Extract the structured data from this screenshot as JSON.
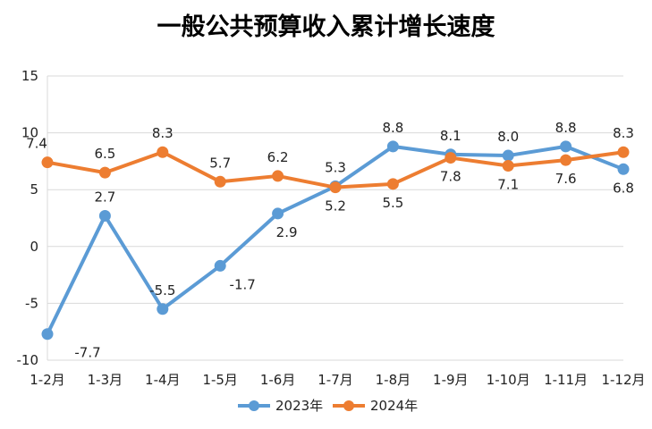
{
  "chart_data": {
    "type": "line",
    "title": "一般公共预算收入累计增长速度",
    "xlabel": "",
    "ylabel": "",
    "categories": [
      "1-2月",
      "1-3月",
      "1-4月",
      "1-5月",
      "1-6月",
      "1-7月",
      "1-8月",
      "1-9月",
      "1-10月",
      "1-11月",
      "1-12月"
    ],
    "ylim": [
      -10,
      15
    ],
    "yticks": [
      -10,
      -5,
      0,
      5,
      10,
      15
    ],
    "grid": true,
    "legend": "bottom",
    "series": [
      {
        "name": "2023年",
        "color": "#5B9BD5",
        "values": [
          -7.7,
          2.7,
          -5.5,
          -1.7,
          2.9,
          5.3,
          8.8,
          8.1,
          8.0,
          8.8,
          6.8
        ],
        "labels": [
          "-7.7",
          "2.7",
          "-5.5",
          "-1.7",
          "2.9",
          "5.3",
          "8.8",
          "8.1",
          "8.0",
          "8.8",
          "6.8"
        ]
      },
      {
        "name": "2024年",
        "color": "#ED7D31",
        "values": [
          7.4,
          6.5,
          8.3,
          5.7,
          6.2,
          5.2,
          5.5,
          7.8,
          7.1,
          7.6,
          8.3
        ],
        "labels": [
          "7.4",
          "6.5",
          "8.3",
          "5.7",
          "6.2",
          "5.2",
          "5.5",
          "7.8",
          "7.1",
          "7.6",
          "8.3"
        ]
      }
    ]
  }
}
